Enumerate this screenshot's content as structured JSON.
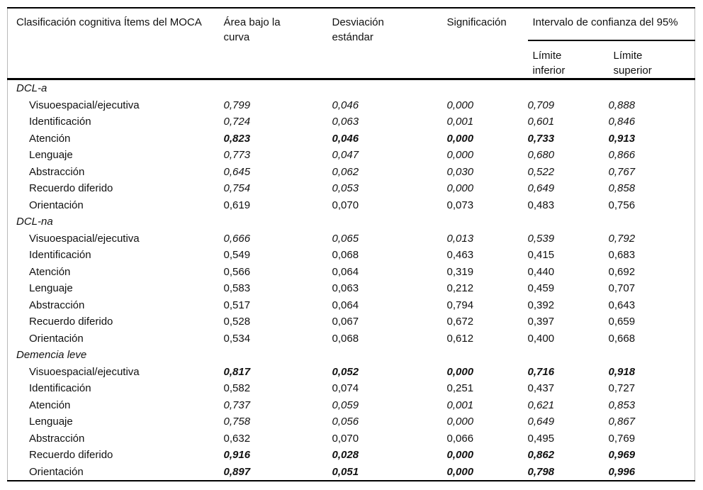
{
  "table": {
    "columns": {
      "c1": "Clasificación cognitiva Ítems del MOCA",
      "c2": "Área bajo la curva",
      "c3": "Desviación estándar",
      "c4": "Significación",
      "ci_group": "Intervalo de confianza del 95%",
      "c5": "Límite inferior",
      "c6": "Límite superior"
    },
    "groups": [
      {
        "label": "DCL-a",
        "rows": [
          {
            "label": "Visuoespacial/ejecutiva",
            "values": [
              "0,799",
              "0,046",
              "0,000",
              "0,709",
              "0,888"
            ],
            "style": "italic"
          },
          {
            "label": "Identificación",
            "values": [
              "0,724",
              "0,063",
              "0,001",
              "0,601",
              "0,846"
            ],
            "style": "italic"
          },
          {
            "label": "Atención",
            "values": [
              "0,823",
              "0,046",
              "0,000",
              "0,733",
              "0,913"
            ],
            "style": "bold-italic"
          },
          {
            "label": "Lenguaje",
            "values": [
              "0,773",
              "0,047",
              "0,000",
              "0,680",
              "0,866"
            ],
            "style": "italic"
          },
          {
            "label": "Abstracción",
            "values": [
              "0,645",
              "0,062",
              "0,030",
              "0,522",
              "0,767"
            ],
            "style": "italic"
          },
          {
            "label": "Recuerdo diferido",
            "values": [
              "0,754",
              "0,053",
              "0,000",
              "0,649",
              "0,858"
            ],
            "style": "italic"
          },
          {
            "label": "Orientación",
            "values": [
              "0,619",
              "0,070",
              "0,073",
              "0,483",
              "0,756"
            ],
            "style": "regular"
          }
        ]
      },
      {
        "label": "DCL-na",
        "rows": [
          {
            "label": "Visuoespacial/ejecutiva",
            "values": [
              "0,666",
              "0,065",
              "0,013",
              "0,539",
              "0,792"
            ],
            "style": "italic"
          },
          {
            "label": "Identificación",
            "values": [
              "0,549",
              "0,068",
              "0,463",
              "0,415",
              "0,683"
            ],
            "style": "regular"
          },
          {
            "label": "Atención",
            "values": [
              "0,566",
              "0,064",
              "0,319",
              "0,440",
              "0,692"
            ],
            "style": "regular"
          },
          {
            "label": "Lenguaje",
            "values": [
              "0,583",
              "0,063",
              "0,212",
              "0,459",
              "0,707"
            ],
            "style": "regular"
          },
          {
            "label": "Abstracción",
            "values": [
              "0,517",
              "0,064",
              "0,794",
              "0,392",
              "0,643"
            ],
            "style": "regular"
          },
          {
            "label": "Recuerdo diferido",
            "values": [
              "0,528",
              "0,067",
              "0,672",
              "0,397",
              "0,659"
            ],
            "style": "regular"
          },
          {
            "label": "Orientación",
            "values": [
              "0,534",
              "0,068",
              "0,612",
              "0,400",
              "0,668"
            ],
            "style": "regular"
          }
        ]
      },
      {
        "label": "Demencia leve",
        "rows": [
          {
            "label": "Visuoespacial/ejecutiva",
            "values": [
              "0,817",
              "0,052",
              "0,000",
              "0,716",
              "0,918"
            ],
            "style": "bold-italic"
          },
          {
            "label": "Identificación",
            "values": [
              "0,582",
              "0,074",
              "0,251",
              "0,437",
              "0,727"
            ],
            "style": "regular"
          },
          {
            "label": "Atención",
            "values": [
              "0,737",
              "0,059",
              "0,001",
              "0,621",
              "0,853"
            ],
            "style": "italic"
          },
          {
            "label": "Lenguaje",
            "values": [
              "0,758",
              "0,056",
              "0,000",
              "0,649",
              "0,867"
            ],
            "style": "italic"
          },
          {
            "label": "Abstracción",
            "values": [
              "0,632",
              "0,070",
              "0,066",
              "0,495",
              "0,769"
            ],
            "style": "regular"
          },
          {
            "label": "Recuerdo diferido",
            "values": [
              "0,916",
              "0,028",
              "0,000",
              "0,862",
              "0,969"
            ],
            "style": "bold-italic"
          },
          {
            "label": "Orientación",
            "values": [
              "0,897",
              "0,051",
              "0,000",
              "0,798",
              "0,996"
            ],
            "style": "bold-italic"
          }
        ]
      }
    ]
  }
}
